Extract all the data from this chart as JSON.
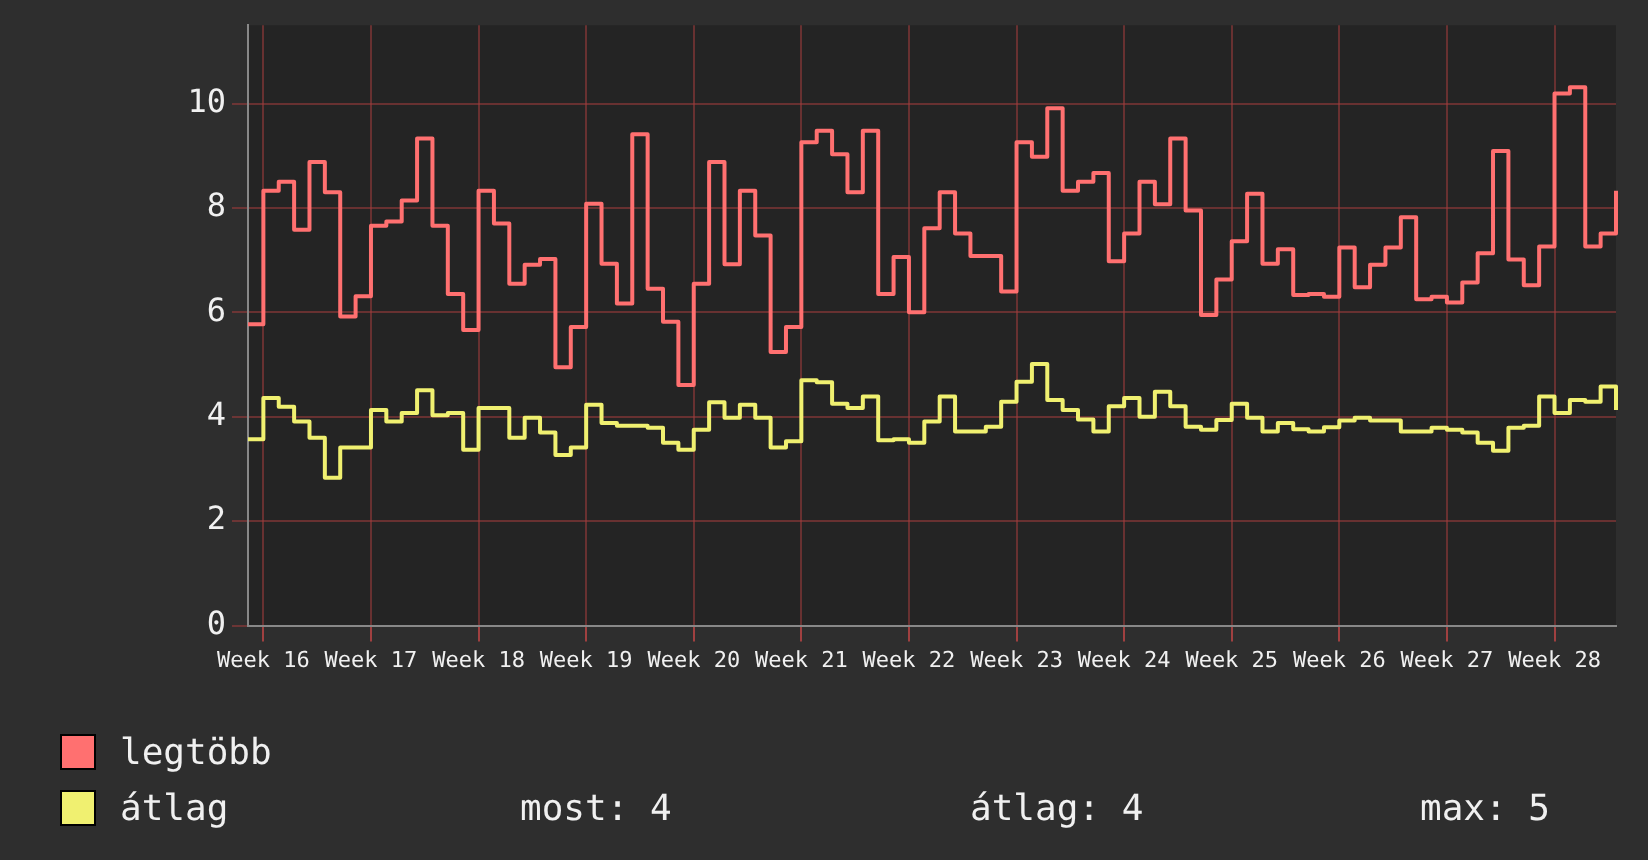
{
  "chart_data": {
    "type": "step",
    "categories": [
      null,
      "Week 16",
      null,
      null,
      null,
      null,
      null,
      null,
      "Week 17",
      null,
      null,
      null,
      null,
      null,
      null,
      "Week 18",
      null,
      null,
      null,
      null,
      null,
      null,
      "Week 19",
      null,
      null,
      null,
      null,
      null,
      null,
      "Week 20",
      null,
      null,
      null,
      null,
      null,
      null,
      "Week 21",
      null,
      null,
      null,
      null,
      null,
      null,
      "Week 22",
      null,
      null,
      null,
      null,
      null,
      null,
      "Week 23",
      null,
      null,
      null,
      null,
      null,
      null,
      "Week 24",
      null,
      null,
      null,
      null,
      null,
      null,
      "Week 25",
      null,
      null,
      null,
      null,
      null,
      null,
      "Week 26",
      null,
      null,
      null,
      null,
      null,
      null,
      "Week 27",
      null,
      null,
      null,
      null,
      null,
      null,
      "Week 28",
      null,
      null,
      null,
      null
    ],
    "series": [
      {
        "name": "legtöbb",
        "color": "#ff7070",
        "values": [
          5.77,
          8.33,
          8.5,
          7.58,
          8.88,
          8.3,
          5.92,
          6.31,
          7.66,
          7.74,
          8.14,
          9.33,
          7.66,
          6.35,
          5.66,
          8.33,
          7.7,
          6.55,
          6.91,
          7.02,
          4.95,
          5.72,
          8.08,
          6.93,
          6.17,
          9.41,
          6.45,
          5.82,
          4.61,
          6.55,
          8.88,
          6.92,
          8.33,
          7.47,
          5.24,
          5.72,
          9.26,
          9.48,
          9.03,
          8.3,
          9.48,
          6.35,
          7.06,
          6.0,
          7.61,
          8.3,
          7.51,
          7.08,
          7.08,
          6.4,
          9.26,
          8.98,
          9.91,
          8.33,
          8.5,
          8.67,
          6.98,
          7.51,
          8.5,
          8.07,
          9.33,
          7.95,
          5.95,
          6.63,
          7.36,
          8.27,
          6.93,
          7.21,
          6.33,
          6.35,
          6.3,
          7.24,
          6.48,
          6.91,
          7.24,
          7.82,
          6.25,
          6.3,
          6.19,
          6.57,
          7.13,
          9.09,
          7.01,
          6.52,
          7.26,
          10.19,
          10.31,
          7.26,
          7.51,
          8.33
        ]
      },
      {
        "name": "átlag",
        "color": "#f0f070",
        "values": [
          3.57,
          4.36,
          4.19,
          3.91,
          3.6,
          2.83,
          3.41,
          3.41,
          4.13,
          3.91,
          4.07,
          4.51,
          4.03,
          4.07,
          3.37,
          4.17,
          4.17,
          3.6,
          3.98,
          3.7,
          3.27,
          3.41,
          4.23,
          3.88,
          3.83,
          3.83,
          3.79,
          3.5,
          3.37,
          3.75,
          4.28,
          3.98,
          4.23,
          3.98,
          3.41,
          3.53,
          4.7,
          4.66,
          4.25,
          4.17,
          4.39,
          3.55,
          3.57,
          3.5,
          3.91,
          4.39,
          3.72,
          3.72,
          3.81,
          4.29,
          4.67,
          5.01,
          4.32,
          4.13,
          3.95,
          3.72,
          4.2,
          4.36,
          4.0,
          4.48,
          4.2,
          3.81,
          3.75,
          3.94,
          4.25,
          3.98,
          3.72,
          3.88,
          3.76,
          3.72,
          3.8,
          3.93,
          3.98,
          3.93,
          3.93,
          3.72,
          3.72,
          3.79,
          3.75,
          3.7,
          3.5,
          3.35,
          3.79,
          3.83,
          4.39,
          4.07,
          4.32,
          4.29,
          4.58,
          4.13
        ]
      }
    ],
    "ylim": [
      0,
      11.5
    ],
    "yticks": [
      0,
      2,
      4,
      6,
      8,
      10
    ],
    "grid": true,
    "legend": "bottom left",
    "annotations": [
      "most: 4",
      "átlag: 4",
      "max: 5"
    ]
  }
}
